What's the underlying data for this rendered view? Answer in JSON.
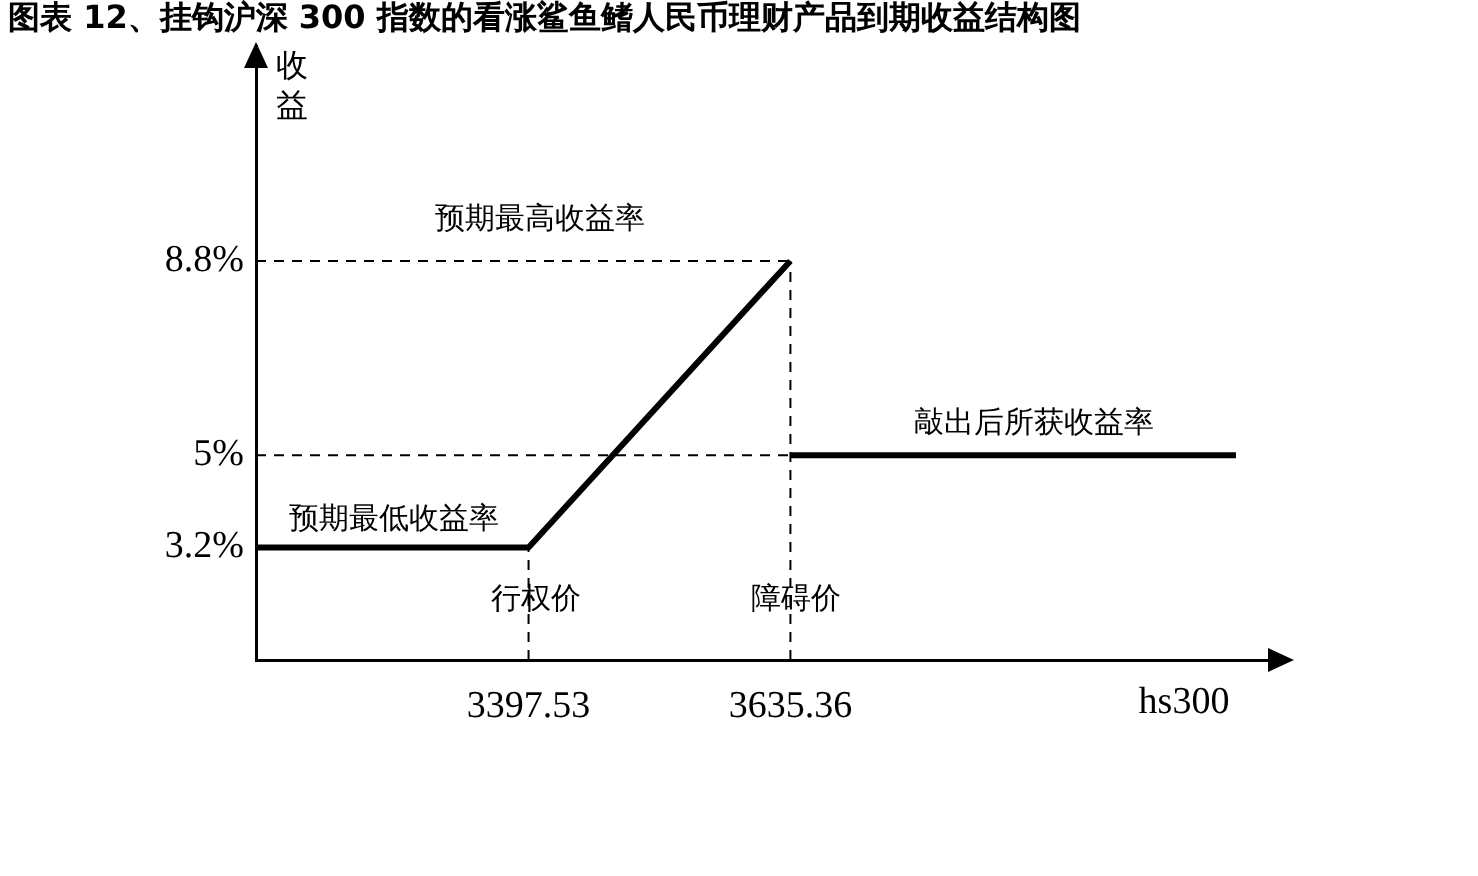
{
  "chart_data": {
    "type": "line",
    "title": "图表 12、挂钩沪深 300 指数的看涨鲨鱼鳍人民币理财产品到期收益结构图",
    "xlabel": "hs300",
    "ylabel": "收益",
    "series": [
      {
        "color": "#000000",
        "x": [
          3150,
          3397.53,
          3635.36
        ],
        "values": [
          3.2,
          3.2,
          8.8
        ]
      },
      {
        "color": "#000000",
        "x": [
          3635.36,
          4040
        ],
        "values": [
          5,
          5
        ]
      }
    ],
    "xlim": [
      3150,
      4080
    ],
    "ylim": [
      1,
      13
    ],
    "xticks": [
      3397.53,
      3635.36
    ],
    "yticks": [
      {
        "value": 3.2,
        "label": "3.2%"
      },
      {
        "value": 5,
        "label": "5%"
      },
      {
        "value": 8.8,
        "label": "8.8%"
      }
    ],
    "ref_lines": [
      {
        "axis": "y",
        "value": 8.8,
        "line_style": "dashed",
        "color": "#000000"
      },
      {
        "axis": "y",
        "value": 5,
        "line_style": "dashed",
        "color": "#000000"
      },
      {
        "axis": "x",
        "value": 3397.53,
        "line_style": "dashed",
        "color": "#000000"
      },
      {
        "axis": "x",
        "value": 3635.36,
        "line_style": "dashed",
        "color": "#000000"
      }
    ],
    "annotations": [
      "预期最高收益率",
      "预期最低收益率",
      "敲出后所获收益率",
      "行权价",
      "障碍价"
    ],
    "legend": false
  }
}
